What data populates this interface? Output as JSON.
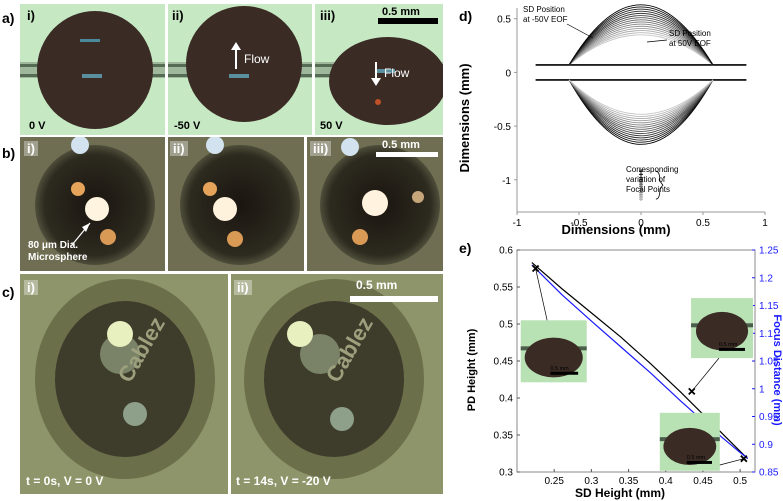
{
  "panel_a": {
    "label": "a)",
    "sub_labels": [
      "i)",
      "ii)",
      "iii)"
    ],
    "voltages": [
      "0 V",
      "-50 V",
      "50 V"
    ],
    "flow_label": "Flow",
    "scale_bar": "0.5 mm"
  },
  "panel_b": {
    "label": "b)",
    "sub_labels": [
      "i)",
      "ii)",
      "iii)"
    ],
    "scale_bar": "0.5 mm",
    "annotation_line1": "80 μm Dia.",
    "annotation_line2": "Microsphere"
  },
  "panel_c": {
    "label": "c)",
    "sub_labels": [
      "i)",
      "ii)"
    ],
    "captions": [
      "t = 0s, V = 0 V",
      "t = 14s, V = -20 V"
    ],
    "scale_bar": "0.5 mm"
  },
  "panel_d": {
    "label": "d)",
    "chart_data": {
      "type": "line",
      "xlabel": "Dimensions (mm)",
      "ylabel": "Dimensions (mm)",
      "xlim": [
        -1,
        1
      ],
      "ylim": [
        -1.3,
        0.6
      ],
      "xticks": [
        "-1",
        "-0.5",
        "0",
        "0.5",
        "1"
      ],
      "yticks": [
        "0.5",
        "0",
        "-0.5",
        "-1"
      ],
      "annotations": {
        "neg": "SD Position at -50V EOF",
        "neg_line1": "SD Position",
        "neg_line2": "at -50V EOF",
        "pos_line1": "SD Position",
        "pos_line2": "at 50V EOF",
        "focal_line1": "Corresponding",
        "focal_line2": "variation of",
        "focal_line3": "Focal Points"
      },
      "channel_walls_y": [
        0.07,
        -0.07
      ],
      "channel_x": [
        -0.85,
        0.85
      ],
      "drop_chord_halfwidth": 0.58,
      "top_cap_heights": [
        0.28,
        0.3,
        0.32,
        0.34,
        0.36,
        0.38,
        0.4,
        0.42,
        0.44,
        0.46,
        0.48,
        0.5,
        0.52,
        0.54,
        0.56
      ],
      "bottom_cap_heights": [
        0.6,
        0.58,
        0.56,
        0.54,
        0.52,
        0.5,
        0.48,
        0.46,
        0.44,
        0.42,
        0.4,
        0.38,
        0.36,
        0.34,
        0.32
      ],
      "focal_points_y": [
        -0.92,
        -0.95,
        -0.98,
        -1.0,
        -1.02,
        -1.04,
        -1.06,
        -1.08,
        -1.1,
        -1.12,
        -1.14,
        -1.16,
        -1.18
      ]
    }
  },
  "panel_e": {
    "label": "e)",
    "chart_data": {
      "type": "line",
      "xlabel": "SD Height (mm)",
      "ylabel": "PD Height (mm)",
      "y2label": "Focus Distance (mm)",
      "xlim": [
        0.2,
        0.52
      ],
      "ylim": [
        0.3,
        0.6
      ],
      "y2lim": [
        0.85,
        1.25
      ],
      "xticks": [
        "0.25",
        "0.3",
        "0.35",
        "0.4",
        "0.45",
        "0.5"
      ],
      "yticks": [
        "0.3",
        "0.35",
        "0.4",
        "0.45",
        "0.5",
        "0.55",
        "0.6"
      ],
      "y2ticks": [
        "0.85",
        "0.9",
        "0.95",
        "1",
        "1.05",
        "1.1",
        "1.15",
        "1.2",
        "1.25"
      ],
      "series": [
        {
          "axis": "left",
          "color": "#000000",
          "x": [
            0.22,
            0.26,
            0.3,
            0.34,
            0.38,
            0.42,
            0.46,
            0.5,
            0.51
          ],
          "y": [
            0.583,
            0.548,
            0.515,
            0.482,
            0.446,
            0.408,
            0.368,
            0.328,
            0.318
          ]
        },
        {
          "axis": "right",
          "color": "#1a1aff",
          "x": [
            0.22,
            0.26,
            0.3,
            0.34,
            0.38,
            0.42,
            0.46,
            0.5,
            0.51
          ],
          "y": [
            1.223,
            1.17,
            1.122,
            1.075,
            1.028,
            0.978,
            0.93,
            0.885,
            0.875
          ]
        }
      ],
      "markers": [
        {
          "x": 0.225,
          "y": 0.575
        },
        {
          "x": 0.435,
          "y": 0.409
        },
        {
          "x": 0.505,
          "y": 0.318
        }
      ],
      "inset_scale_bar": "0.5 mm"
    }
  },
  "colors": {
    "panel_a_bg": "#c3e8c3",
    "droplet": "#3a2a24",
    "panel_b_bg": "#6b6a4e",
    "panel_c_bg": "#8e9468",
    "focus_axis": "#1a1aff"
  }
}
